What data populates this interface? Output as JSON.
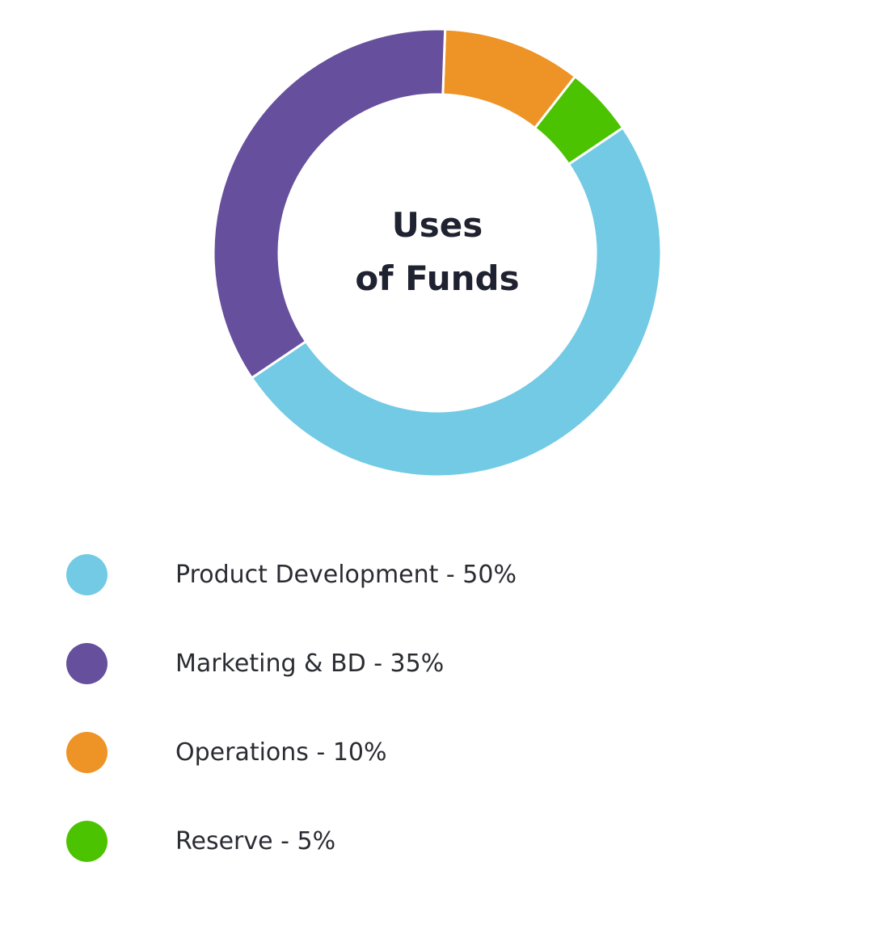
{
  "chart_data": {
    "type": "pie",
    "variant": "donut",
    "title_lines": [
      "Uses",
      "of Funds"
    ],
    "categories": [
      "Product Development",
      "Marketing & BD",
      "Operations",
      "Reserve"
    ],
    "values": [
      50,
      35,
      10,
      5
    ],
    "colors": [
      "#73cae4",
      "#664f9c",
      "#ee9326",
      "#4cc300"
    ],
    "legend": {
      "placement": "bottom-left",
      "items": [
        {
          "label": "Product Development - 50%",
          "color": "#73cae4"
        },
        {
          "label": "Marketing & BD - 35%",
          "color": "#664f9c"
        },
        {
          "label": "Operations - 10%",
          "color": "#ee9326"
        },
        {
          "label": "Reserve - 5%",
          "color": "#4cc300"
        }
      ]
    }
  }
}
